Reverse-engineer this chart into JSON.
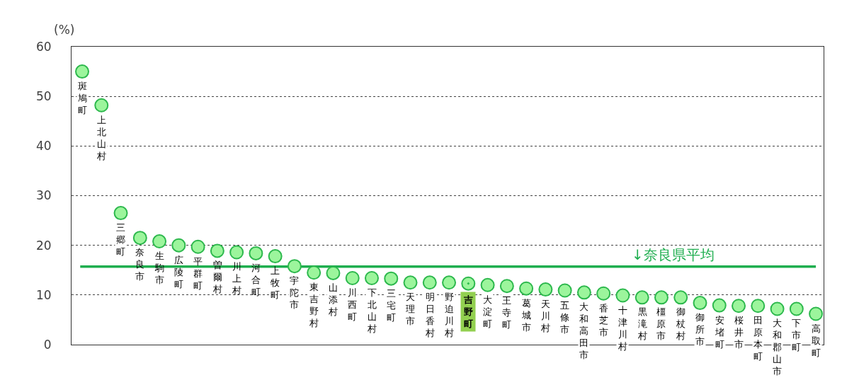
{
  "chart_data": {
    "type": "scatter",
    "ylabel": "(%)",
    "categories": [
      "斑鳩町",
      "上北山村",
      "三郷町",
      "奈良市",
      "生駒市",
      "広陵町",
      "平群町",
      "曽爾村",
      "川上村",
      "河合町",
      "上牧町",
      "宇陀市",
      "東吉野村",
      "山添村",
      "川西町",
      "下北山村",
      "三宅町",
      "天理市",
      "明日香村",
      "野迫川村",
      "吉野町",
      "大淀町",
      "王寺町",
      "葛城市",
      "天川村",
      "五條市",
      "大和高田市",
      "香芝市",
      "十津川村",
      "黒滝村",
      "橿原市",
      "御杖村",
      "御所市",
      "安堵町",
      "桜井市",
      "田原本町",
      "大和郡山市",
      "下市町",
      "高取町"
    ],
    "series": [
      {
        "color": "#9cf59c",
        "values": [
          55.0,
          48.2,
          26.5,
          21.5,
          20.8,
          20.0,
          19.7,
          18.9,
          18.6,
          18.4,
          17.8,
          15.8,
          14.5,
          14.4,
          13.4,
          13.4,
          13.3,
          12.5,
          12.5,
          12.5,
          null,
          12.0,
          11.8,
          11.3,
          11.1,
          10.9,
          10.5,
          10.3,
          9.9,
          9.5,
          9.5,
          9.5,
          8.4,
          7.9,
          7.8,
          7.8,
          7.2,
          7.2,
          6.2
        ]
      },
      {
        "color": "#9cf59c",
        "values": [
          null,
          null,
          null,
          null,
          null,
          null,
          null,
          null,
          null,
          null,
          null,
          null,
          null,
          null,
          null,
          null,
          null,
          null,
          null,
          null,
          12.3,
          null,
          null,
          null,
          null,
          null,
          null,
          null,
          null,
          null,
          null,
          null,
          null,
          null,
          null,
          null,
          null,
          null,
          null
        ]
      }
    ],
    "ylim": [
      0,
      60
    ],
    "yticks": [
      0,
      10,
      20,
      30,
      40,
      50,
      60
    ],
    "ref_lines": [
      {
        "axis": "y",
        "value": 15.7,
        "label": "↓奈良県平均",
        "color": "#1fae4f"
      }
    ],
    "grid": "y",
    "legend": false,
    "marker": "circle",
    "tick_labels": "y"
  }
}
